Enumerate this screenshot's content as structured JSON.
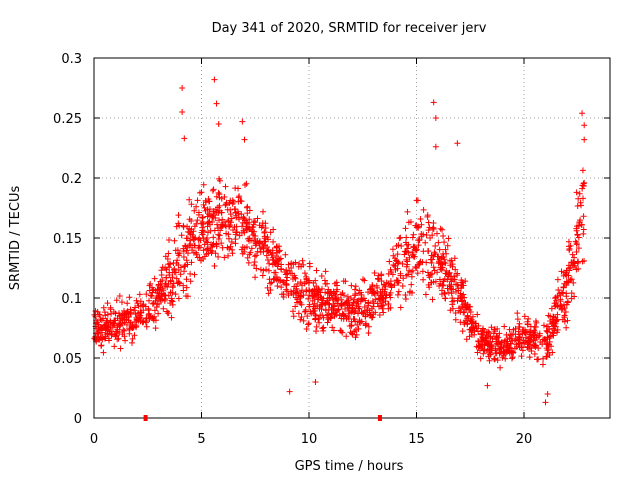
{
  "chart_data": {
    "type": "scatter",
    "title": "Day 341 of 2020, SRMTID for receiver jerv",
    "xlabel": "GPS time / hours",
    "ylabel": "SRMTID / TECUs",
    "xlim": [
      0,
      24
    ],
    "ylim": [
      0,
      0.3
    ],
    "x_ticks": [
      0,
      5,
      10,
      15,
      20
    ],
    "x_tick_labels": [
      "0",
      "5",
      "10",
      "15",
      "20"
    ],
    "y_ticks": [
      0,
      0.05,
      0.1,
      0.15,
      0.2,
      0.25,
      0.3
    ],
    "y_tick_labels": [
      "0",
      "0.05",
      "0.1",
      "0.15",
      "0.2",
      "0.25",
      "0.3"
    ],
    "grid": true,
    "marker": "+",
    "color": "#ff0000",
    "axis_markers_x": [
      2.4,
      13.3
    ],
    "envelope": [
      {
        "x": 0.0,
        "mean": 0.072,
        "spread": 0.018
      },
      {
        "x": 1.0,
        "mean": 0.078,
        "spread": 0.022
      },
      {
        "x": 2.0,
        "mean": 0.085,
        "spread": 0.022
      },
      {
        "x": 3.0,
        "mean": 0.1,
        "spread": 0.025
      },
      {
        "x": 4.0,
        "mean": 0.13,
        "spread": 0.045
      },
      {
        "x": 5.0,
        "mean": 0.16,
        "spread": 0.04
      },
      {
        "x": 6.0,
        "mean": 0.165,
        "spread": 0.04
      },
      {
        "x": 7.0,
        "mean": 0.16,
        "spread": 0.035
      },
      {
        "x": 8.0,
        "mean": 0.14,
        "spread": 0.03
      },
      {
        "x": 9.0,
        "mean": 0.115,
        "spread": 0.03
      },
      {
        "x": 10.0,
        "mean": 0.1,
        "spread": 0.03
      },
      {
        "x": 11.0,
        "mean": 0.095,
        "spread": 0.025
      },
      {
        "x": 12.0,
        "mean": 0.09,
        "spread": 0.025
      },
      {
        "x": 13.0,
        "mean": 0.095,
        "spread": 0.025
      },
      {
        "x": 14.0,
        "mean": 0.12,
        "spread": 0.035
      },
      {
        "x": 15.0,
        "mean": 0.145,
        "spread": 0.04
      },
      {
        "x": 16.0,
        "mean": 0.135,
        "spread": 0.045
      },
      {
        "x": 17.0,
        "mean": 0.1,
        "spread": 0.03
      },
      {
        "x": 18.0,
        "mean": 0.065,
        "spread": 0.02
      },
      {
        "x": 19.0,
        "mean": 0.058,
        "spread": 0.018
      },
      {
        "x": 20.0,
        "mean": 0.07,
        "spread": 0.02
      },
      {
        "x": 21.0,
        "mean": 0.06,
        "spread": 0.02
      },
      {
        "x": 22.0,
        "mean": 0.11,
        "spread": 0.035
      },
      {
        "x": 22.8,
        "mean": 0.175,
        "spread": 0.05
      }
    ],
    "highlights": [
      {
        "x": 4.1,
        "y": 0.275
      },
      {
        "x": 4.1,
        "y": 0.255
      },
      {
        "x": 4.2,
        "y": 0.233
      },
      {
        "x": 5.6,
        "y": 0.282
      },
      {
        "x": 5.7,
        "y": 0.262
      },
      {
        "x": 5.8,
        "y": 0.245
      },
      {
        "x": 6.9,
        "y": 0.247
      },
      {
        "x": 7.0,
        "y": 0.232
      },
      {
        "x": 15.8,
        "y": 0.263
      },
      {
        "x": 15.9,
        "y": 0.25
      },
      {
        "x": 15.9,
        "y": 0.226
      },
      {
        "x": 16.9,
        "y": 0.229
      },
      {
        "x": 22.7,
        "y": 0.254
      },
      {
        "x": 22.8,
        "y": 0.244
      },
      {
        "x": 22.8,
        "y": 0.232
      },
      {
        "x": 9.1,
        "y": 0.022
      },
      {
        "x": 21.0,
        "y": 0.013
      },
      {
        "x": 21.1,
        "y": 0.02
      },
      {
        "x": 18.3,
        "y": 0.027
      },
      {
        "x": 10.3,
        "y": 0.03
      }
    ]
  }
}
